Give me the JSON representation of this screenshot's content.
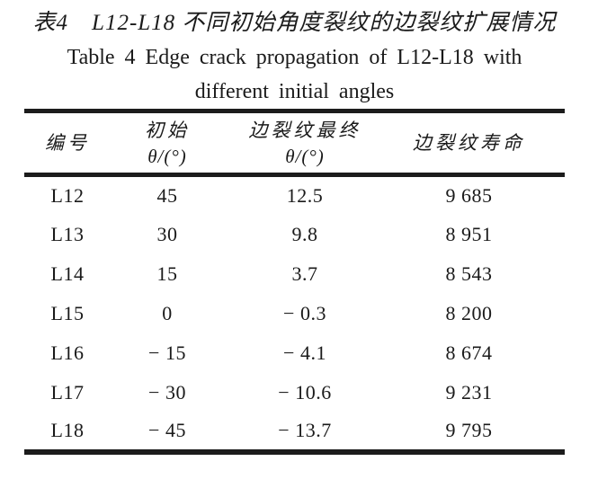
{
  "page": {
    "background_color": "#ffffff",
    "text_color": "#1a1a1a",
    "rule_color": "#1c1c1c"
  },
  "title": {
    "zh": "表4　L12-L18 不同初始角度裂纹的边裂纹扩展情况",
    "en_line1": "Table 4 Edge crack propagation of L12-L18 with",
    "en_line2": "different initial angles"
  },
  "table": {
    "headers": [
      {
        "line1": "编号",
        "line2": ""
      },
      {
        "line1": "初始",
        "line2": "θ/(°)"
      },
      {
        "line1": "边裂纹最终",
        "line2": "θ/(°)"
      },
      {
        "line1": "边裂纹寿命",
        "line2": ""
      }
    ],
    "rows": [
      {
        "id": "L12",
        "initial_angle": "45",
        "final_angle": "12.5",
        "life": "9 685"
      },
      {
        "id": "L13",
        "initial_angle": "30",
        "final_angle": "9.8",
        "life": "8 951"
      },
      {
        "id": "L14",
        "initial_angle": "15",
        "final_angle": "3.7",
        "life": "8 543"
      },
      {
        "id": "L15",
        "initial_angle": "0",
        "final_angle": "− 0.3",
        "life": "8 200"
      },
      {
        "id": "L16",
        "initial_angle": "− 15",
        "final_angle": "− 4.1",
        "life": "8 674"
      },
      {
        "id": "L17",
        "initial_angle": "− 30",
        "final_angle": "− 10.6",
        "life": "9 231"
      },
      {
        "id": "L18",
        "initial_angle": "− 45",
        "final_angle": "− 13.7",
        "life": "9 795"
      }
    ]
  },
  "chart_data": {
    "type": "table",
    "title": "Table 4 Edge crack propagation of L12-L18 with different initial angles",
    "columns": [
      "编号",
      "初始 θ/(°)",
      "边裂纹最终 θ/(°)",
      "边裂纹寿命"
    ],
    "specimens": [
      "L12",
      "L13",
      "L14",
      "L15",
      "L16",
      "L17",
      "L18"
    ],
    "initial_angle_deg": [
      45,
      30,
      15,
      0,
      -15,
      -30,
      -45
    ],
    "final_edge_crack_angle_deg": [
      12.5,
      9.8,
      3.7,
      -0.3,
      -4.1,
      -10.6,
      -13.7
    ],
    "edge_crack_life": [
      9685,
      8951,
      8543,
      8200,
      8674,
      9231,
      9795
    ]
  }
}
